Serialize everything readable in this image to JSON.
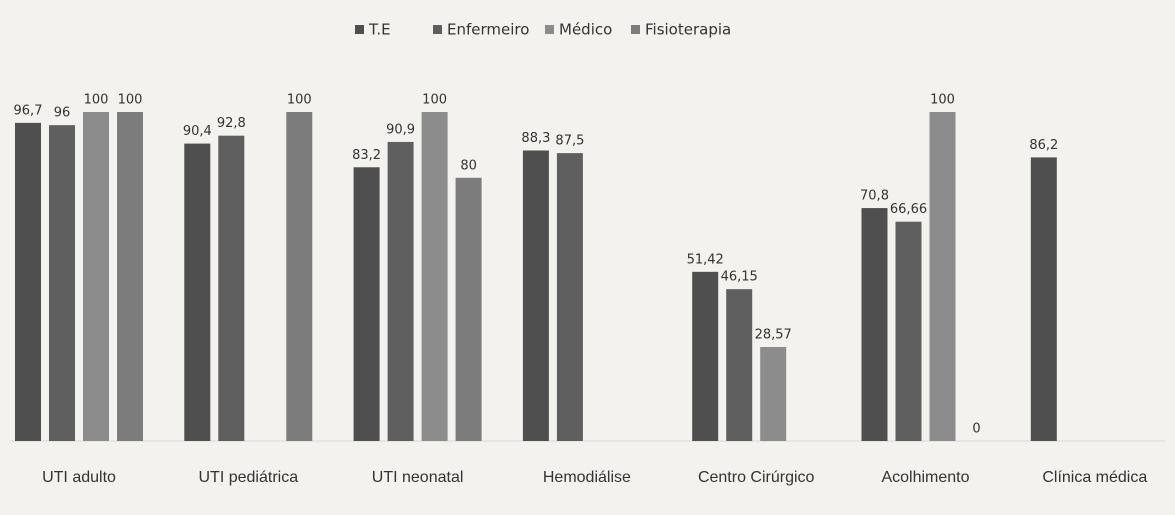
{
  "chart_data": {
    "type": "bar",
    "categories": [
      "UTI adulto",
      "UTI pediátrica",
      "UTI neonatal",
      "Hemodiálise",
      "Centro Cirúrgico",
      "Acolhimento",
      "Clínica médica"
    ],
    "series": [
      {
        "name": "T.E",
        "color": "#4f4f4f",
        "values": [
          96.7,
          90.4,
          83.2,
          88.3,
          51.42,
          70.8,
          86.2
        ],
        "value_labels": [
          "96,7",
          "90,4",
          "83,2",
          "88,3",
          "51,42",
          "70,8",
          "86,2"
        ]
      },
      {
        "name": "Enfermeiro",
        "color": "#5f5f5f",
        "values": [
          96,
          92.8,
          90.9,
          87.5,
          46.15,
          66.66,
          null
        ],
        "value_labels": [
          "96",
          "92,8",
          "90,9",
          "87,5",
          "46,15",
          "66,66",
          null
        ]
      },
      {
        "name": "Médico",
        "color": "#8c8c8c",
        "values": [
          100,
          null,
          100,
          null,
          28.57,
          100,
          null
        ],
        "value_labels": [
          "100",
          null,
          "100",
          null,
          "28,57",
          "100",
          null
        ]
      },
      {
        "name": "Fisioterapia",
        "color": "#7c7c7c",
        "values": [
          100,
          100,
          80,
          null,
          null,
          0,
          null
        ],
        "value_labels": [
          "100",
          "100",
          "80",
          null,
          null,
          "0",
          null
        ]
      }
    ],
    "ylim": [
      0,
      100
    ]
  }
}
